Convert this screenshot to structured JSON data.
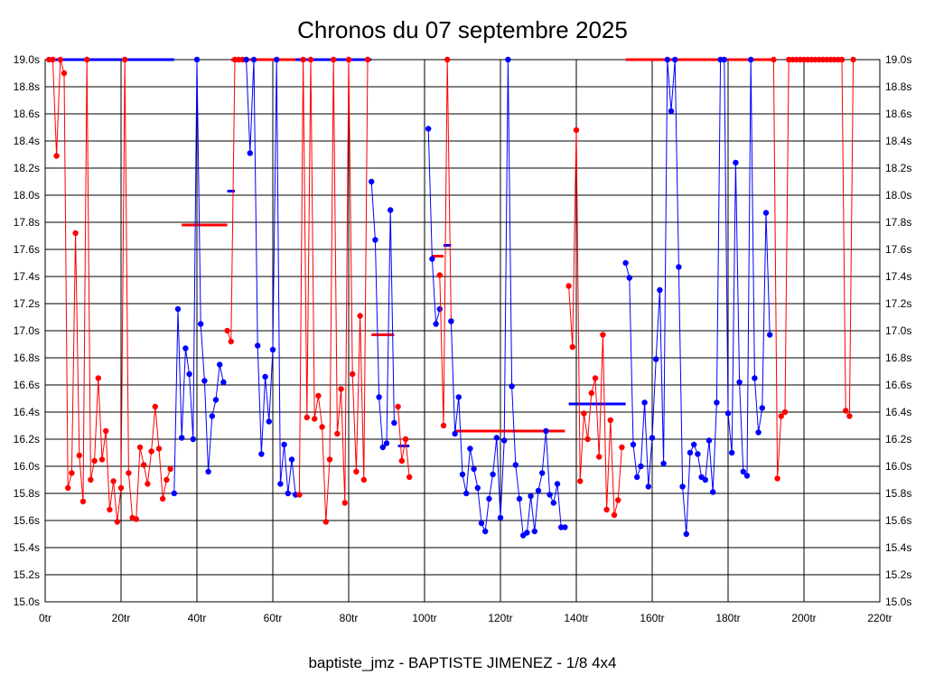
{
  "chart_data": {
    "type": "line",
    "title": "Chronos du 07 septembre 2025",
    "subtitle": "baptiste_jmz - BAPTISTE JIMENEZ - 1/8 4x4",
    "xlabel": "",
    "ylabel": "",
    "xlim": [
      0,
      220
    ],
    "ylim": [
      15.0,
      19.0
    ],
    "x_ticks": [
      0,
      20,
      40,
      60,
      80,
      100,
      120,
      140,
      160,
      180,
      200,
      220
    ],
    "x_tick_labels": [
      "0tr",
      "20tr",
      "40tr",
      "60tr",
      "80tr",
      "100tr",
      "120tr",
      "140tr",
      "160tr",
      "180tr",
      "200tr",
      "220tr"
    ],
    "y_ticks": [
      15.0,
      15.2,
      15.4,
      15.6,
      15.8,
      16.0,
      16.2,
      16.4,
      16.6,
      16.8,
      17.0,
      17.2,
      17.4,
      17.6,
      17.8,
      18.0,
      18.2,
      18.4,
      18.6,
      18.8,
      19.0
    ],
    "y_tick_labels": [
      "15.0s",
      "15.2s",
      "15.4s",
      "15.6s",
      "15.8s",
      "16.0s",
      "16.2s",
      "16.4s",
      "16.6s",
      "16.8s",
      "17.0s",
      "17.2s",
      "17.4s",
      "17.6s",
      "17.8s",
      "18.0s",
      "18.2s",
      "18.4s",
      "18.6s",
      "18.8s",
      "19.0s"
    ],
    "grid": true,
    "colors": {
      "red": "#ff0000",
      "blue": "#0000ff"
    },
    "series": [
      {
        "color": "#ff0000",
        "x": [
          1,
          2,
          3,
          4,
          5,
          6,
          7,
          8,
          9,
          10,
          11,
          12,
          13,
          14,
          15,
          16,
          17,
          18,
          19,
          20,
          21,
          22,
          23,
          24,
          25,
          26,
          27,
          28,
          29,
          30,
          31,
          32,
          33
        ],
        "y": [
          19.0,
          19.0,
          18.29,
          19.0,
          18.9,
          15.84,
          15.95,
          17.72,
          16.08,
          15.74,
          19.0,
          15.9,
          16.04,
          16.65,
          16.05,
          16.26,
          15.68,
          15.89,
          15.59,
          15.84,
          19.0,
          15.95,
          15.62,
          15.61,
          16.14,
          16.01,
          15.87,
          16.11,
          16.44,
          16.13,
          15.76,
          15.9,
          15.98
        ]
      },
      {
        "color": "#0000ff",
        "x": [
          34,
          35,
          36,
          37,
          38,
          39,
          40,
          41,
          42,
          43,
          44,
          45,
          46,
          47
        ],
        "y": [
          15.8,
          17.16,
          16.21,
          16.87,
          16.68,
          16.2,
          19.0,
          17.05,
          16.63,
          15.96,
          16.37,
          16.49,
          16.75,
          16.62
        ]
      },
      {
        "color": "#ff0000",
        "x": [
          48,
          49,
          50,
          51,
          52,
          53
        ],
        "y": [
          17.0,
          16.92,
          19.0,
          19.0,
          19.0,
          19.0
        ]
      },
      {
        "color": "#0000ff",
        "x": [
          53,
          54,
          55,
          56,
          57,
          58,
          59,
          60,
          61,
          62,
          63,
          64,
          65,
          66
        ],
        "y": [
          19.0,
          18.31,
          19.0,
          16.89,
          16.09,
          16.66,
          16.33,
          16.86,
          19.0,
          15.87,
          16.16,
          15.8,
          16.05,
          15.79
        ]
      },
      {
        "color": "#ff0000",
        "x": [
          67,
          68,
          69,
          70,
          71,
          72,
          73,
          74,
          75,
          76,
          77,
          78,
          79,
          80,
          81,
          82,
          83,
          84,
          85
        ],
        "y": [
          15.79,
          19.0,
          16.36,
          19.0,
          16.35,
          16.52,
          16.29,
          15.59,
          16.05,
          19.0,
          16.24,
          16.57,
          15.73,
          19.0,
          16.68,
          15.96,
          17.11,
          15.9,
          19.0
        ]
      },
      {
        "color": "#0000ff",
        "x": [
          86,
          87,
          88,
          89,
          90,
          91,
          92
        ],
        "y": [
          18.1,
          17.67,
          16.51,
          16.14,
          16.17,
          17.89,
          16.32
        ]
      },
      {
        "color": "#ff0000",
        "x": [
          93,
          94,
          95,
          96
        ],
        "y": [
          16.44,
          16.04,
          16.2,
          15.92
        ]
      },
      {
        "color": "#0000ff",
        "x": [
          101,
          102,
          103,
          104
        ],
        "y": [
          18.49,
          17.53,
          17.05,
          17.16
        ]
      },
      {
        "color": "#ff0000",
        "x": [
          104,
          105,
          106,
          107
        ],
        "y": [
          17.41,
          16.3,
          19.0,
          17.07
        ]
      },
      {
        "color": "#0000ff",
        "x": [
          107,
          108,
          109,
          110,
          111,
          112,
          113,
          114,
          115,
          116,
          117,
          118,
          119,
          120,
          121,
          122,
          123,
          124,
          125,
          126,
          127,
          128,
          129,
          130,
          131,
          132,
          133,
          134,
          135,
          136,
          137
        ],
        "y": [
          17.07,
          16.24,
          16.51,
          15.94,
          15.8,
          16.13,
          15.98,
          15.84,
          15.58,
          15.52,
          15.76,
          15.94,
          16.21,
          15.62,
          16.19,
          19.0,
          16.59,
          16.01,
          15.76,
          15.49,
          15.51,
          15.78,
          15.52,
          15.82,
          15.95,
          16.26,
          15.79,
          15.73,
          15.87,
          15.55,
          15.55
        ]
      },
      {
        "color": "#ff0000",
        "x": [
          138,
          139,
          140,
          141,
          142,
          143,
          144,
          145,
          146,
          147,
          148,
          149,
          150,
          151,
          152
        ],
        "y": [
          17.33,
          16.88,
          18.48,
          15.89,
          16.39,
          16.2,
          16.54,
          16.65,
          16.07,
          16.97,
          15.68,
          16.34,
          15.64,
          15.75,
          16.14
        ]
      },
      {
        "color": "#0000ff",
        "x": [
          153,
          154,
          155,
          156,
          157,
          158,
          159,
          160,
          161,
          162,
          163,
          164,
          165,
          166,
          167,
          168,
          169,
          170,
          171,
          172,
          173,
          174,
          175,
          176,
          177,
          178,
          179,
          180,
          181,
          182,
          183,
          184,
          185,
          186,
          187,
          188,
          189,
          190,
          191
        ],
        "y": [
          17.5,
          17.39,
          16.16,
          15.92,
          16.0,
          16.47,
          15.85,
          16.21,
          16.79,
          17.3,
          16.02,
          19.0,
          18.62,
          19.0,
          17.47,
          15.85,
          15.5,
          16.1,
          16.16,
          16.09,
          15.92,
          15.9,
          16.19,
          15.81,
          16.47,
          19.0,
          19.0,
          16.39,
          16.1,
          18.24,
          16.62,
          15.96,
          15.93,
          19.0,
          16.65,
          16.25,
          16.43,
          17.87,
          16.97
        ]
      },
      {
        "color": "#ff0000",
        "x": [
          192,
          193,
          194,
          195,
          196,
          197,
          198,
          199,
          200,
          201,
          202,
          203,
          204,
          205,
          206,
          207,
          208,
          209,
          210,
          211,
          212,
          213
        ],
        "y": [
          19.0,
          15.91,
          16.37,
          16.4,
          19.0,
          19.0,
          19.0,
          19.0,
          19.0,
          19.0,
          19.0,
          19.0,
          19.0,
          19.0,
          19.0,
          19.0,
          19.0,
          19.0,
          19.0,
          16.41,
          16.37,
          19.0
        ]
      }
    ],
    "segments": [
      {
        "color": "#0000ff",
        "x": [
          1,
          34
        ],
        "y": 19.0
      },
      {
        "color": "#ff0000",
        "x": [
          36,
          48
        ],
        "y": 17.78
      },
      {
        "color": "#0000ff",
        "x": [
          48,
          50
        ],
        "y": 18.03
      },
      {
        "color": "#ff0000",
        "x": [
          49,
          66
        ],
        "y": 19.0
      },
      {
        "color": "#0000ff",
        "x": [
          66,
          86
        ],
        "y": 19.0
      },
      {
        "color": "#ff0000",
        "x": [
          86,
          92
        ],
        "y": 16.97
      },
      {
        "color": "#0000ff",
        "x": [
          93,
          96
        ],
        "y": 16.15
      },
      {
        "color": "#ff0000",
        "x": [
          102,
          105
        ],
        "y": 17.55
      },
      {
        "color": "#0000ff",
        "x": [
          105,
          107
        ],
        "y": 17.63
      },
      {
        "color": "#ff0000",
        "x": [
          108,
          137
        ],
        "y": 16.26
      },
      {
        "color": "#0000ff",
        "x": [
          138,
          153
        ],
        "y": 16.46
      },
      {
        "color": "#ff0000",
        "x": [
          153,
          192
        ],
        "y": 19.0
      }
    ]
  }
}
